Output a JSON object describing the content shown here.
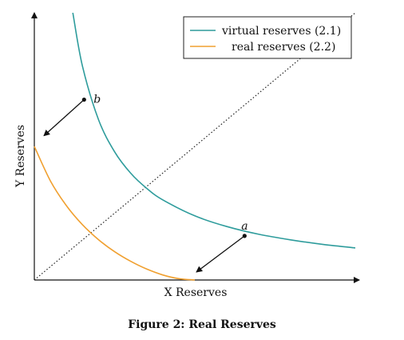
{
  "chart_data": {
    "type": "line",
    "xlabel": "X Reserves",
    "ylabel": "Y Reserves",
    "caption": "Figure 2: Real Reserves",
    "xlim": [
      0,
      10
    ],
    "ylim": [
      0,
      10
    ],
    "grid": false,
    "legend_position": "top-right",
    "series": [
      {
        "name": "virtual reserves (2.1)",
        "color": "#2e9c9c",
        "x": [
          1.2,
          1.5,
          2.0,
          2.5,
          3.0,
          3.5,
          4.0,
          5.0,
          6.0,
          7.0,
          8.0,
          9.0,
          10.0
        ],
        "y": [
          10.0,
          8.0,
          6.0,
          4.8,
          4.0,
          3.43,
          3.0,
          2.4,
          2.0,
          1.71,
          1.5,
          1.33,
          1.2
        ]
      },
      {
        "name": "real reserves (2.2)",
        "color": "#f0a030",
        "x": [
          0.0,
          0.5,
          1.0,
          1.5,
          2.0,
          2.5,
          3.0,
          3.5,
          4.0,
          4.5,
          5.0
        ],
        "y": [
          5.0,
          3.71,
          2.78,
          2.07,
          1.51,
          1.06,
          0.7,
          0.41,
          0.19,
          0.05,
          0.0
        ]
      }
    ],
    "diagonal": {
      "style": "dotted",
      "color": "#222222",
      "from": [
        0,
        0
      ],
      "to": [
        10,
        10
      ]
    },
    "points": [
      {
        "label": "b",
        "x": 1.55,
        "y": 6.75
      },
      {
        "label": "a",
        "x": 6.55,
        "y": 1.65
      }
    ],
    "arrows": [
      {
        "from": [
          1.55,
          6.75
        ],
        "to": [
          0.3,
          5.4
        ]
      },
      {
        "from": [
          6.55,
          1.65
        ],
        "to": [
          5.05,
          0.3
        ]
      }
    ]
  }
}
